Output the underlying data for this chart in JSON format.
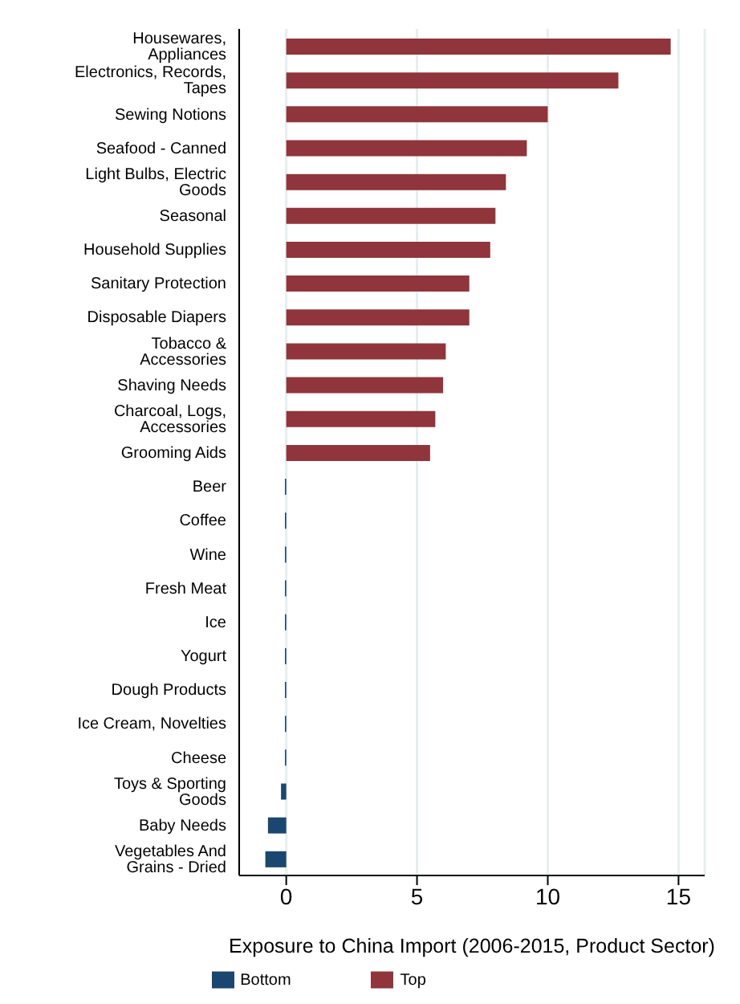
{
  "chart_data": {
    "type": "bar",
    "orientation": "horizontal",
    "xlabel": "Exposure to China Import (2006-2015, Product Sector)",
    "categories": [
      "Housewares, Appliances",
      "Electronics, Records, Tapes",
      "Sewing Notions",
      "Seafood - Canned",
      "Light Bulbs, Electric Goods",
      "Seasonal",
      "Household Supplies",
      "Sanitary Protection",
      "Disposable Diapers",
      "Tobacco & Accessories",
      "Shaving Needs",
      "Charcoal, Logs, Accessories",
      "Grooming Aids",
      "Beer",
      "Coffee",
      "Wine",
      "Fresh Meat",
      "Ice",
      "Yogurt",
      "Dough Products",
      "Ice Cream, Novelties",
      "Cheese",
      "Toys & Sporting Goods",
      "Baby Needs",
      "Vegetables And Grains - Dried"
    ],
    "series": [
      {
        "name": "Bottom",
        "color": "#1a476f",
        "values": [
          null,
          null,
          null,
          null,
          null,
          null,
          null,
          null,
          null,
          null,
          null,
          null,
          null,
          -0.05,
          -0.05,
          -0.05,
          -0.05,
          -0.05,
          -0.05,
          -0.05,
          -0.05,
          -0.05,
          -0.2,
          -0.7,
          -0.8
        ]
      },
      {
        "name": "Top",
        "color": "#90353b",
        "values": [
          14.7,
          12.7,
          10.0,
          9.2,
          8.4,
          8.0,
          7.8,
          7.0,
          7.0,
          6.1,
          6.0,
          5.7,
          5.5,
          null,
          null,
          null,
          null,
          null,
          null,
          null,
          null,
          null,
          null,
          null,
          null
        ]
      }
    ],
    "xlim": [
      -1.8,
      16
    ],
    "xticks": [
      0,
      5,
      10,
      15
    ],
    "grid": "x",
    "legend": "bottom"
  }
}
